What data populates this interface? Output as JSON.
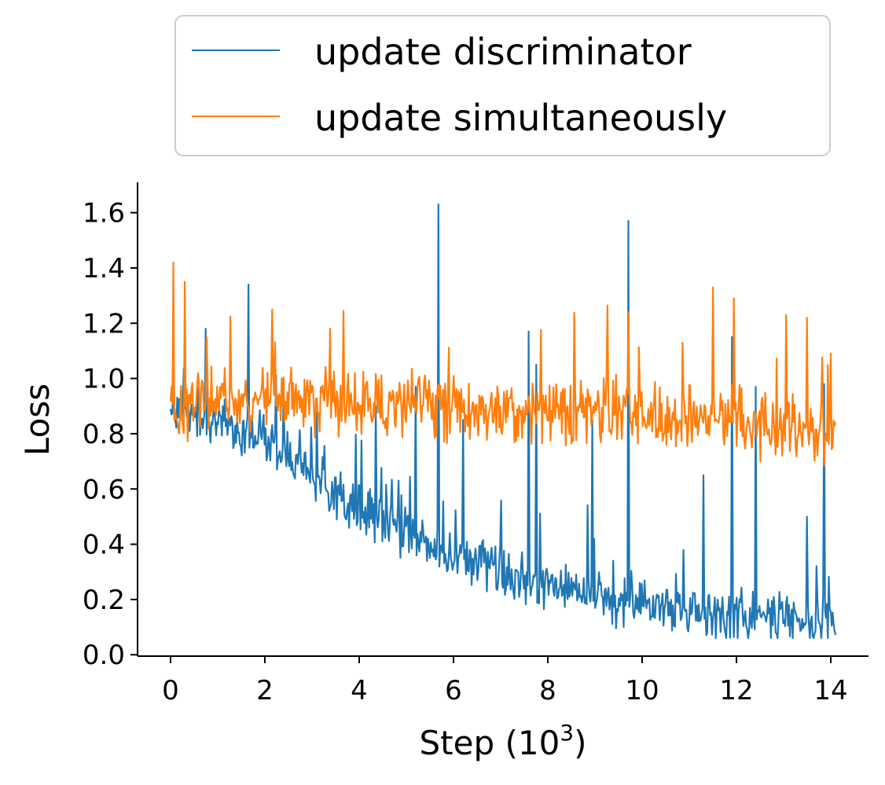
{
  "chart_data": {
    "type": "line",
    "title": "",
    "xlabel": "Step (10",
    "xlabel_sup": "3",
    "xlabel_close": ")",
    "ylabel": "Loss",
    "xlim": [
      -0.7,
      14.8
    ],
    "ylim": [
      -0.005,
      1.71
    ],
    "xticks": [
      0,
      2,
      4,
      6,
      8,
      10,
      12,
      14
    ],
    "xtick_labels": [
      "0",
      "2",
      "4",
      "6",
      "8",
      "10",
      "12",
      "14"
    ],
    "yticks": [
      0.0,
      0.2,
      0.4,
      0.6,
      0.8,
      1.0,
      1.2,
      1.4,
      1.6
    ],
    "ytick_labels": [
      "0.0",
      "0.2",
      "0.4",
      "0.6",
      "0.8",
      "1.0",
      "1.2",
      "1.4",
      "1.6"
    ],
    "grid": false,
    "legend_position": "top (above plot)",
    "x_start": 0,
    "x_end": 14.1,
    "series": [
      {
        "name": "update discriminator",
        "color": "#1f77b4",
        "trend": [
          [
            0,
            0.9
          ],
          [
            2,
            0.78
          ],
          [
            4,
            0.52
          ],
          [
            6,
            0.36
          ],
          [
            8,
            0.24
          ],
          [
            10,
            0.19
          ],
          [
            12,
            0.14
          ],
          [
            14,
            0.11
          ]
        ],
        "noise": 0.07,
        "spikes": [
          [
            0.75,
            1.18
          ],
          [
            1.65,
            1.34
          ],
          [
            2.4,
            0.95
          ],
          [
            3.1,
            0.88
          ],
          [
            4.35,
            0.9
          ],
          [
            5.2,
            0.97
          ],
          [
            5.68,
            1.63
          ],
          [
            6.2,
            0.85
          ],
          [
            7.6,
            1.17
          ],
          [
            7.75,
            1.05
          ],
          [
            8.95,
            0.85
          ],
          [
            9.7,
            1.57
          ],
          [
            11.3,
            0.65
          ],
          [
            11.9,
            1.15
          ],
          [
            12.4,
            0.97
          ],
          [
            13.5,
            0.5
          ],
          [
            13.85,
            0.98
          ]
        ]
      },
      {
        "name": "update simultaneously",
        "color": "#ff7f0e",
        "trend": [
          [
            0,
            0.88
          ],
          [
            1,
            0.93
          ],
          [
            3,
            0.92
          ],
          [
            6,
            0.9
          ],
          [
            8,
            0.88
          ],
          [
            10,
            0.87
          ],
          [
            12,
            0.85
          ],
          [
            14,
            0.8
          ]
        ],
        "noise": 0.09,
        "spikes": [
          [
            0.07,
            1.42
          ],
          [
            0.3,
            1.35
          ],
          [
            2.15,
            1.25
          ],
          [
            9.7,
            1.24
          ],
          [
            11.5,
            1.33
          ],
          [
            11.95,
            1.29
          ],
          [
            13.5,
            1.22
          ],
          [
            13.05,
            1.23
          ],
          [
            14.0,
            1.09
          ]
        ]
      }
    ]
  }
}
